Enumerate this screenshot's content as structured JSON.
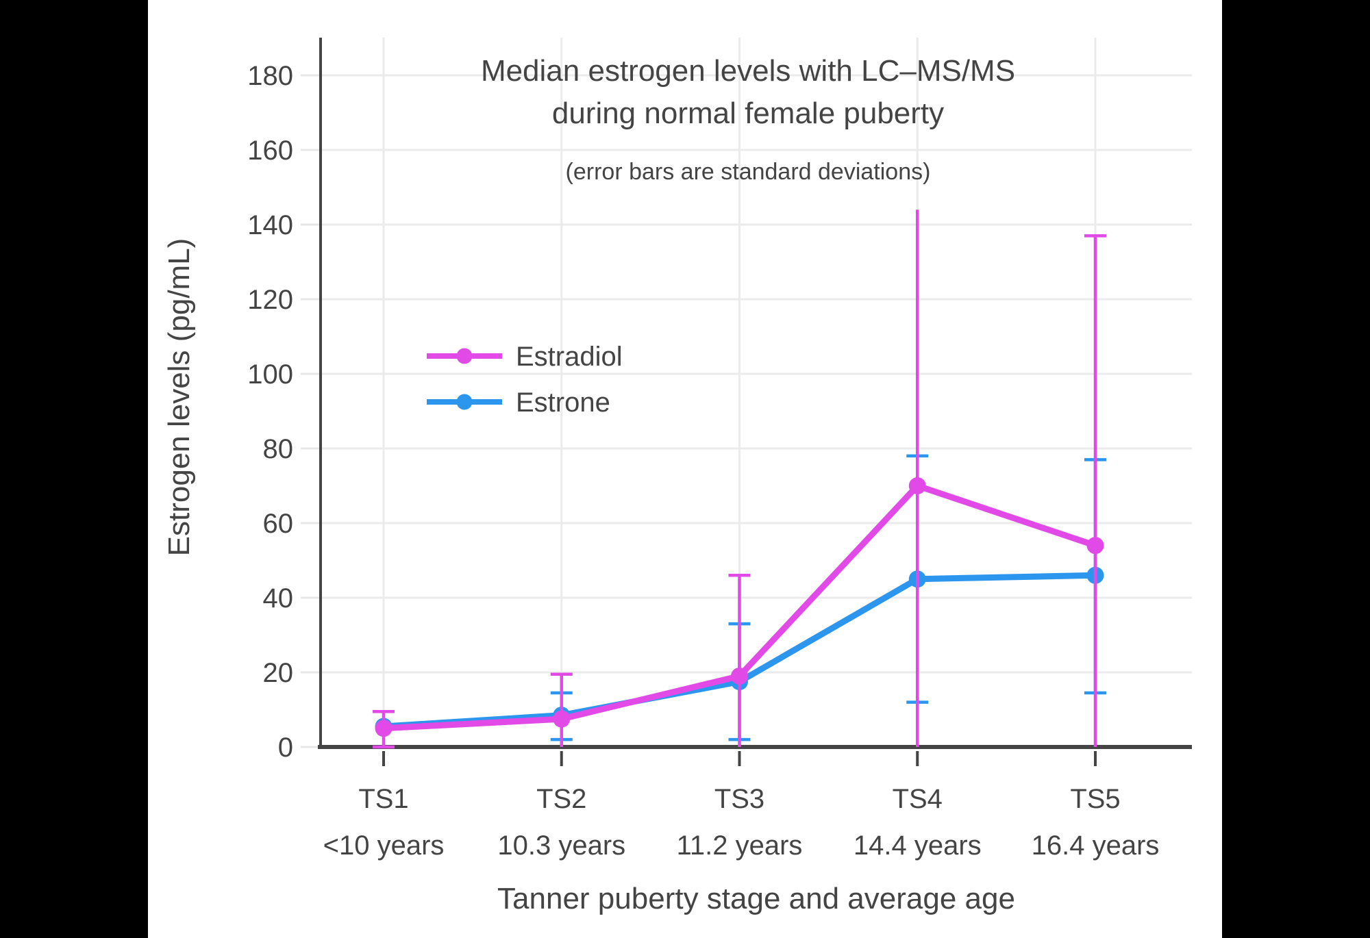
{
  "canvas": {
    "background": "#000000",
    "panel_background": "#ffffff"
  },
  "chart_data": {
    "type": "line",
    "title_lines": [
      "Median estrogen levels with LC–MS/MS",
      "during normal female puberty"
    ],
    "subtitle": "(error bars are standard deviations)",
    "xlabel": "Tanner puberty stage and average age",
    "ylabel": "Estrogen levels (pg/mL)",
    "x_categories": [
      {
        "stage": "TS1",
        "age": "<10 years"
      },
      {
        "stage": "TS2",
        "age": "10.3 years"
      },
      {
        "stage": "TS3",
        "age": "11.2 years"
      },
      {
        "stage": "TS4",
        "age": "14.4 years"
      },
      {
        "stage": "TS5",
        "age": "16.4 years"
      }
    ],
    "y_ticks": [
      0,
      20,
      40,
      60,
      80,
      100,
      120,
      140,
      160,
      180
    ],
    "ylim": [
      0,
      190
    ],
    "grid": true,
    "legend_position": "inside-upper-left",
    "text_color": "#444444",
    "axis_color": "#444444",
    "grid_color": "#ebebeb",
    "minor_tick_color": "#e7e7e7",
    "series": [
      {
        "name": "Estradiol",
        "color": "#e14ae6",
        "z": 2,
        "values": [
          5,
          7.5,
          19,
          70,
          54
        ],
        "error_low": [
          0,
          0,
          0,
          0,
          0
        ],
        "error_high": [
          9.5,
          19.5,
          46,
          144,
          137
        ],
        "cap_low": [
          true,
          false,
          false,
          false,
          false
        ],
        "cap_high": [
          true,
          true,
          true,
          false,
          true
        ]
      },
      {
        "name": "Estrone",
        "color": "#2c96ee",
        "z": 1,
        "values": [
          5.5,
          8.5,
          17.5,
          45,
          46
        ],
        "error_low": [
          null,
          2,
          2,
          12,
          14.5
        ],
        "error_high": [
          null,
          14.5,
          33,
          78,
          77
        ],
        "cap_low": [
          false,
          true,
          true,
          true,
          true
        ],
        "cap_high": [
          false,
          true,
          true,
          true,
          true
        ]
      }
    ]
  }
}
